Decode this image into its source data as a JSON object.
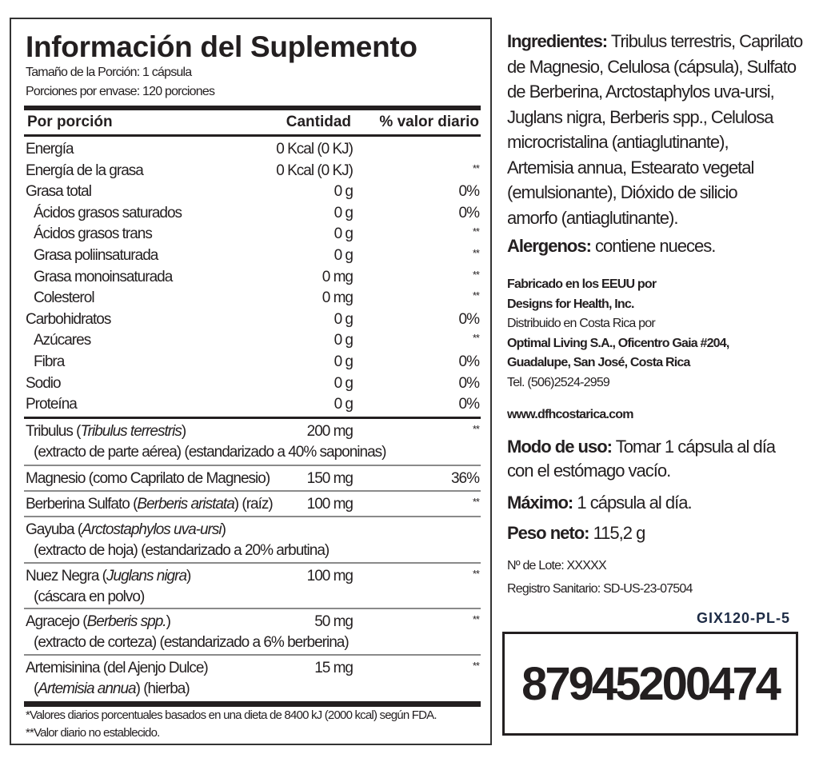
{
  "facts": {
    "title": "Información del Suplemento",
    "serving_size": "Tamaño de la Porción: 1 cápsula",
    "servings_per_container": "Porciones por envase: 120 porciones",
    "header": {
      "name": "Por porción",
      "amount": "Cantidad",
      "dv": "% valor diario"
    },
    "nutrients": [
      {
        "name": "Energía",
        "amount": "0 Kcal (0 KJ)",
        "dv": ""
      },
      {
        "name": "Energía de la grasa",
        "amount": "0 Kcal (0 KJ)",
        "dv": "**"
      },
      {
        "name": "Grasa total",
        "amount": "0 g",
        "dv": "0%"
      },
      {
        "name": "Ácidos grasos saturados",
        "amount": "0 g",
        "dv": "0%"
      },
      {
        "name": "Ácidos grasos trans",
        "amount": "0 g",
        "dv": "**"
      },
      {
        "name": "Grasa poliinsaturada",
        "amount": "0 g",
        "dv": "**"
      },
      {
        "name": "Grasa monoinsaturada",
        "amount": "0 mg",
        "dv": "**"
      },
      {
        "name": "Colesterol",
        "amount": "0 mg",
        "dv": "**"
      },
      {
        "name": "Carbohidratos",
        "amount": "0 g",
        "dv": "0%"
      },
      {
        "name": "Azúcares",
        "amount": "0 g",
        "dv": "**"
      },
      {
        "name": "Fibra",
        "amount": "0 g",
        "dv": "0%"
      },
      {
        "name": "Sodio",
        "amount": "0 g",
        "dv": "0%"
      },
      {
        "name": "Proteína",
        "amount": "0 g",
        "dv": "0%"
      }
    ],
    "ingredients": [
      {
        "name": "Tribulus (",
        "latin": "Tribulus terrestris",
        "after": ")",
        "detail": "(extracto de parte aérea) (estandarizado a 40% saponinas)",
        "amount": "200 mg",
        "dv": "**"
      },
      {
        "name": "Magnesio (como Caprilato de Magnesio)",
        "latin": "",
        "after": "",
        "detail": "",
        "amount": "150 mg",
        "dv": "36%"
      },
      {
        "name": "Berberina Sulfato (",
        "latin": "Berberis aristata",
        "after": ") (raíz)",
        "detail": "",
        "amount": "100 mg",
        "dv": "**"
      },
      {
        "name": "Gayuba (",
        "latin": "Arctostaphylos uva-ursi",
        "after": ")",
        "detail": "(extracto de hoja) (estandarizado a 20% arbutina)",
        "amount": "",
        "dv": ""
      },
      {
        "name": "Nuez Negra (",
        "latin": "Juglans nigra",
        "after": ")",
        "detail": "(cáscara en polvo)",
        "amount": "100 mg",
        "dv": "**"
      },
      {
        "name": "Agracejo (",
        "latin": "Berberis spp.",
        "after": ")",
        "detail": "(extracto de corteza) (estandarizado a 6% berberina)",
        "amount": "50 mg",
        "dv": "**"
      },
      {
        "name": "Artemisinina (del Ajenjo Dulce)",
        "latin": "",
        "after": "",
        "detail_open": "(",
        "detail_latin": "Artemisia annua",
        "detail_after": ") (hierba)",
        "amount": "15 mg",
        "dv": "**"
      }
    ],
    "footnote_1": "*Valores diarios porcentuales basados en una dieta de 8400 kJ (2000 kcal) según FDA.",
    "footnote_2": "**Valor diario no establecido."
  },
  "right": {
    "ingredients_label": "Ingredientes:",
    "ingredients_lines": [
      " Tribulus terrestris, Caprilato",
      "de Magnesio, Celulosa (cápsula), Sulfato",
      "de Berberina, Arctostaphylos uva-ursi,",
      "Juglans nigra, Berberis spp., Celulosa",
      "microcristalina (antiaglutinante),",
      "Artemisia annua, Estearato vegetal",
      "(emulsionante), Dióxido de silicio",
      "amorfo (antiaglutinante)."
    ],
    "allergens_label": "Alergenos:",
    "allergens": " contiene nueces.",
    "manufacturer_1": "Fabricado en los EEUU por",
    "manufacturer_2": "Designs for Health, Inc.",
    "distributed": "Distribuido en Costa Rica por",
    "distributor_1": "Optimal Living S.A., Oficentro Gaia #204,",
    "distributor_2": "Guadalupe, San José, Costa Rica",
    "phone": "Tel. (506)2524-2959",
    "website": "www.dfhcostarica.com",
    "usage_label": "Modo de uso:",
    "usage_1": " Tomar 1 cápsula al día",
    "usage_2": "con el estómago vacío.",
    "max_label": "Máximo:",
    "max": " 1 cápsula al día.",
    "weight_label": "Peso neto:",
    "weight": " 115,2 g",
    "lot": "Nº de Lote: XXXXX",
    "registry": "Registro Sanitario: SD-US-23-07504",
    "product_code": "GIX120-PL-5",
    "barcode_number": "87945200474"
  },
  "colors": {
    "text": "#231f20",
    "code": "#1d2b45",
    "divider": "#8a8a8a"
  }
}
